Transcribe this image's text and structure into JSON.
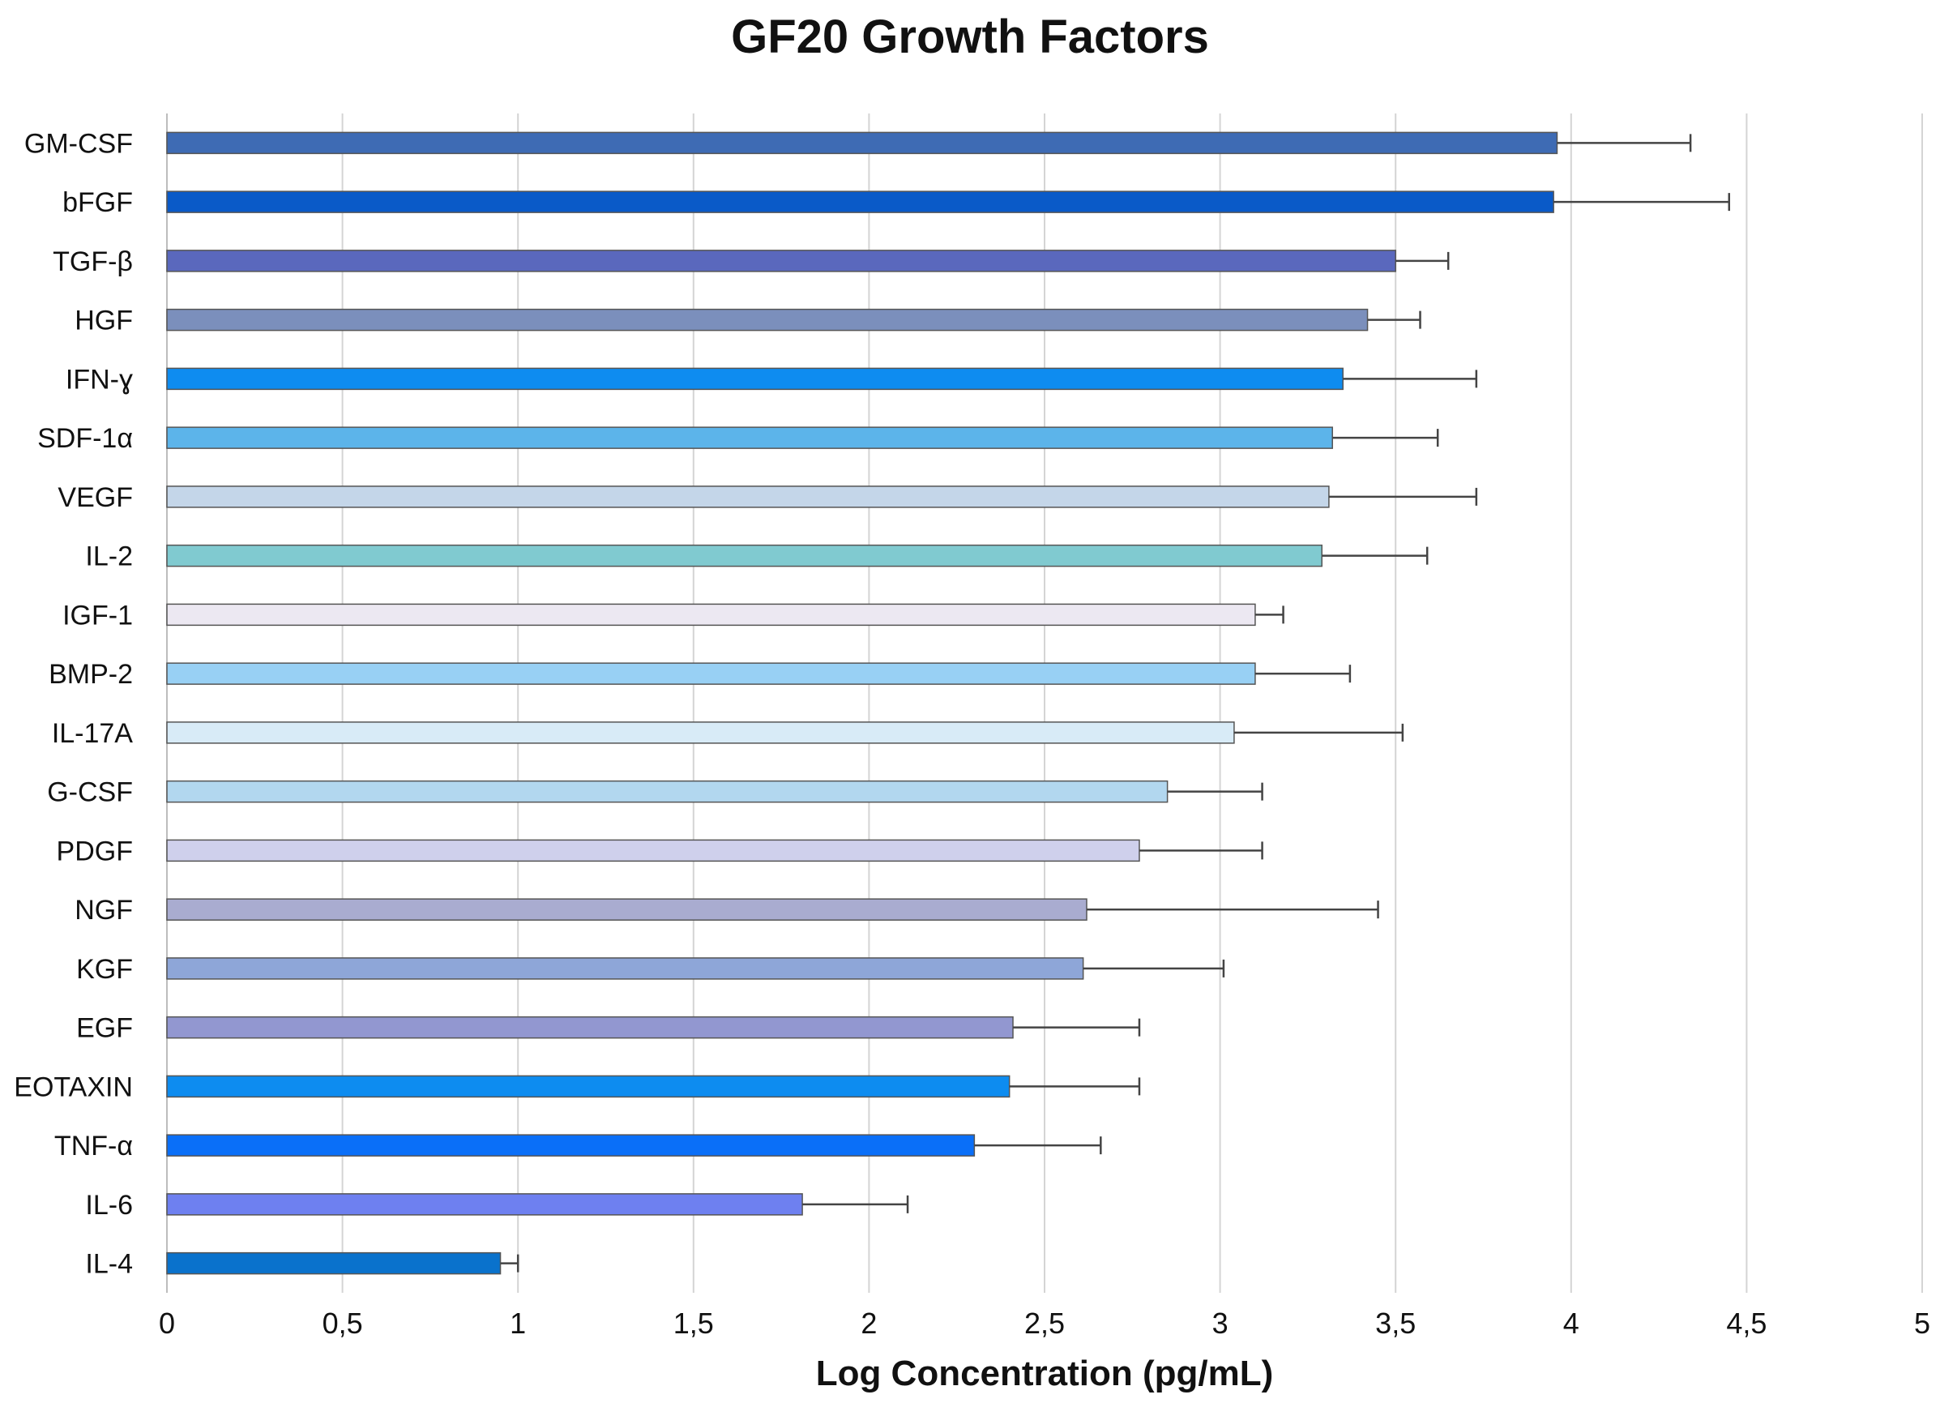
{
  "chart_data": {
    "type": "bar",
    "orientation": "horizontal",
    "title": "GF20 Growth Factors",
    "xlabel": "Log Concentration (pg/mL)",
    "ylabel": "",
    "xlim": [
      0,
      5
    ],
    "grid": true,
    "x_ticks": [
      0,
      0.5,
      1,
      1.5,
      2,
      2.5,
      3,
      3.5,
      4,
      4.5,
      5
    ],
    "x_tick_labels": [
      "0",
      "0,5",
      "1",
      "1,5",
      "2",
      "2,5",
      "3",
      "3,5",
      "4",
      "4,5",
      "5"
    ],
    "categories": [
      "GM-CSF",
      "bFGF",
      "TGF-β",
      "HGF",
      "IFN-ɣ",
      "SDF-1α",
      "VEGF",
      "IL-2",
      "IGF-1",
      "BMP-2",
      "IL-17A",
      "G-CSF",
      "PDGF",
      "NGF",
      "KGF",
      "EGF",
      "EOTAXIN",
      "TNF-α",
      "IL-6",
      "IL-4"
    ],
    "values": [
      3.96,
      3.95,
      3.5,
      3.42,
      3.35,
      3.32,
      3.31,
      3.29,
      3.1,
      3.1,
      3.04,
      2.85,
      2.77,
      2.62,
      2.61,
      2.41,
      2.4,
      2.3,
      1.81,
      0.95
    ],
    "error_upper": [
      4.34,
      4.45,
      3.65,
      3.57,
      3.73,
      3.62,
      3.73,
      3.59,
      3.18,
      3.37,
      3.52,
      3.12,
      3.12,
      3.45,
      3.01,
      2.77,
      2.77,
      2.66,
      2.11,
      1.0
    ],
    "colors": [
      "#3e6bb4",
      "#0a5ac8",
      "#5a68bd",
      "#7b8fbc",
      "#0e8cf0",
      "#5cb4ea",
      "#c4d6e9",
      "#80cad0",
      "#ece8f2",
      "#98d0f4",
      "#d8ebf7",
      "#b2d7ef",
      "#cfd0ec",
      "#a9acd0",
      "#8ea6d8",
      "#9297d0",
      "#0d8cf0",
      "#0a6ff8",
      "#6e80f0",
      "#0a72cc"
    ]
  }
}
